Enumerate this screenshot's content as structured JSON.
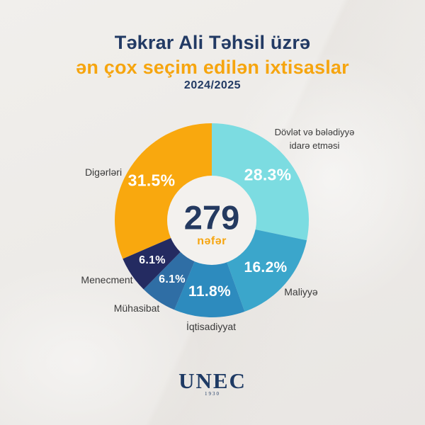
{
  "header": {
    "title": "Təkrar Ali Təhsil üzrə",
    "subtitle": "ən çox seçim edilən ixtisaslar",
    "year": "2024/2025"
  },
  "chart_data": {
    "type": "pie",
    "variant": "donut",
    "title": "Təkrar Ali Təhsil üzrə ən çox seçim edilən ixtisaslar 2024/2025",
    "center_value": "279",
    "center_unit": "nəfər",
    "start_angle_deg": 0,
    "direction": "clockwise",
    "donut_hole_ratio": 0.46,
    "hole_color": "#f3f1ee",
    "slices": [
      {
        "label": "Dövlət və bələdiyyə idarə etməsi",
        "value": 28.3,
        "color": "#7cdce1"
      },
      {
        "label": "Maliyyə",
        "value": 16.2,
        "color": "#3ba6cb"
      },
      {
        "label": "İqtisadiyyat",
        "value": 11.8,
        "color": "#2d8bbe"
      },
      {
        "label": "Mühasibat",
        "value": 6.1,
        "color": "#2f6ea5"
      },
      {
        "label": "Menecment",
        "value": 6.1,
        "color": "#242b61"
      },
      {
        "label": "Digərləri",
        "value": 31.5,
        "color": "#f9a80e"
      }
    ]
  },
  "footer": {
    "logo_text": "UNEC",
    "logo_year": "1930"
  },
  "colors": {
    "title_navy": "#223a64",
    "accent_orange": "#f6a50f",
    "background": "#edebe8",
    "percent_text": "#ffffff",
    "outside_label_text": "#3a3a3a"
  }
}
